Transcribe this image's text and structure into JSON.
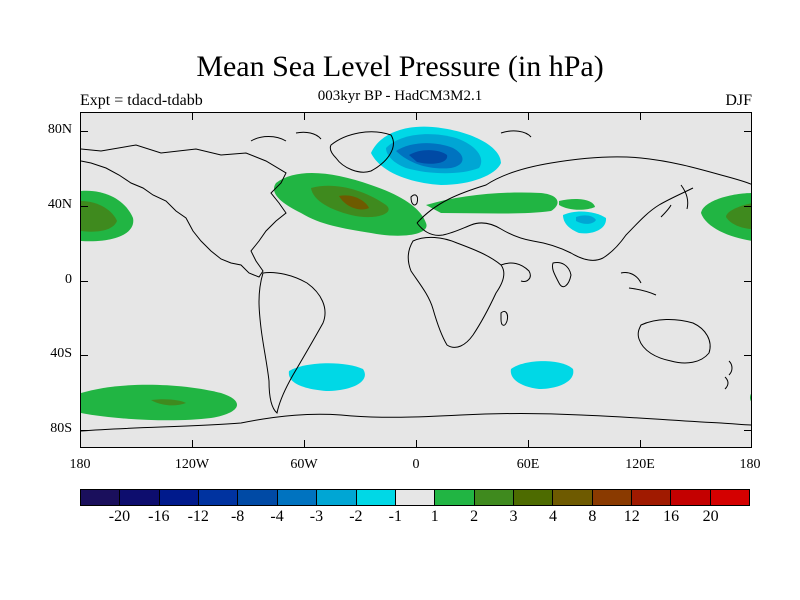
{
  "title": "Mean Sea Level Pressure (in hPa)",
  "subtitle": "003kyr BP - HadCM3M2.1",
  "experiment": "Expt = tdacd-tdabb",
  "season": "DJF",
  "map": {
    "latitude_labels": [
      "80N",
      "40N",
      "0",
      "40S",
      "80S"
    ],
    "longitude_labels": [
      "180",
      "120W",
      "60W",
      "0",
      "60E",
      "120E",
      "180"
    ],
    "background_color": "#e6e6e6",
    "anomaly_regions": [
      {
        "name": "North Atlantic low",
        "value_range": "< -4",
        "colors": [
          "#00d8e6",
          "#00a6d4",
          "#0073c0",
          "#004aa5"
        ]
      },
      {
        "name": "North Atlantic high",
        "value_range": "1 to 4",
        "colors": [
          "#21b543",
          "#3f8a1e",
          "#6e5a00"
        ]
      },
      {
        "name": "North Pacific high",
        "value_range": "1 to 4",
        "colors": [
          "#21b543",
          "#3f8a1e",
          "#6e5a00"
        ]
      },
      {
        "name": "Southern Pacific high",
        "value_range": "1 to 3",
        "colors": [
          "#21b543",
          "#3f8a1e"
        ]
      },
      {
        "name": "Asian high",
        "value_range": "1 to 2",
        "colors": [
          "#21b543"
        ]
      },
      {
        "name": "Southern lows",
        "value_range": "-2 to -1",
        "colors": [
          "#00d8e6"
        ]
      }
    ]
  },
  "colorbar": {
    "labels": [
      "-20",
      "-16",
      "-12",
      "-8",
      "-4",
      "-3",
      "-2",
      "-1",
      "1",
      "2",
      "3",
      "4",
      "8",
      "12",
      "16",
      "20"
    ],
    "colors": [
      "#1a0f5c",
      "#0d0d6e",
      "#001a8c",
      "#0033a0",
      "#004aa5",
      "#0073c0",
      "#00a6d4",
      "#00d8e6",
      "#e6e6e6",
      "#21b543",
      "#3f8a1e",
      "#4d6b00",
      "#6e5a00",
      "#8a3a00",
      "#a01a00",
      "#c40000",
      "#d40000"
    ]
  }
}
